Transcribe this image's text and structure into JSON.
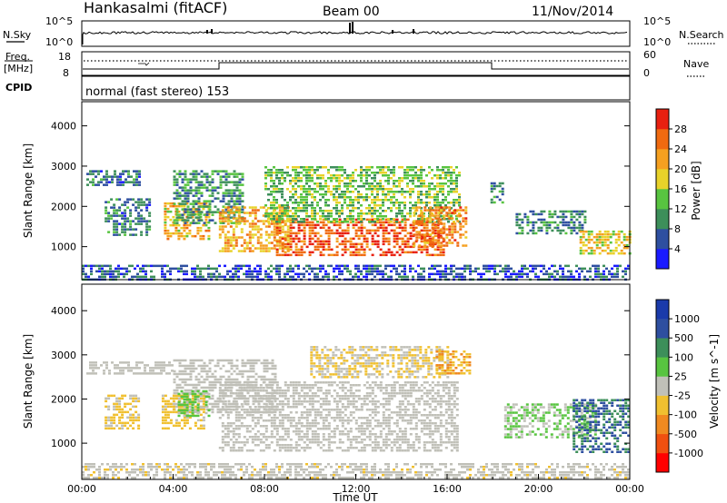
{
  "header": {
    "station": "Hankasalmi (fitACF)",
    "beam": "Beam 00",
    "date": "11/Nov/2014"
  },
  "top_panels": {
    "nsky_label": "N.Sky",
    "nsearch_label": "N.Search",
    "nsky_ticks": [
      "10^5",
      "10^0"
    ],
    "nsearch_ticks": [
      "10^5",
      "10^0"
    ],
    "freq_label_1": "Freq.",
    "freq_label_2": "[MHz]",
    "freq_ticks": [
      "18",
      "8"
    ],
    "nave_label": "Nave",
    "nave_ticks": [
      "60",
      "0"
    ],
    "cpid_label": "CPID",
    "cpid_text": "normal (fast stereo) 153"
  },
  "colors": {
    "power": [
      "#1a1aff",
      "#2e4fa0",
      "#3d8f5a",
      "#58c440",
      "#e8d22a",
      "#f5a020",
      "#f06a10",
      "#e82010"
    ],
    "velocity": [
      "#ff0000",
      "#f05010",
      "#f08a20",
      "#f0c030",
      "#c0c0b8",
      "#58c440",
      "#3d8f5a",
      "#2e4fa0",
      "#1a3aaa"
    ]
  },
  "chart_data": [
    {
      "type": "heatmap",
      "name": "Power",
      "ylabel": "Slant Range [km]",
      "yticks": [
        1000,
        2000,
        3000,
        4000
      ],
      "ylim": [
        180,
        4600
      ],
      "colorbar": {
        "label": "Power [dB]",
        "ticks": [
          "28",
          "24",
          "20",
          "16",
          "12",
          "8",
          "4"
        ],
        "range": [
          0,
          32
        ]
      },
      "regions": [
        {
          "t0": 0.2,
          "t1": 2.5,
          "r0": 2500,
          "r1": 2900,
          "v": 8
        },
        {
          "t0": 1.0,
          "t1": 3.0,
          "r0": 1300,
          "r1": 2200,
          "v": 8
        },
        {
          "t0": 3.6,
          "t1": 5.6,
          "r0": 1200,
          "r1": 2100,
          "v": 20
        },
        {
          "t0": 4.0,
          "t1": 7.0,
          "r0": 1600,
          "r1": 2900,
          "v": 10
        },
        {
          "t0": 6.0,
          "t1": 9.0,
          "r0": 900,
          "r1": 2000,
          "v": 21
        },
        {
          "t0": 8.5,
          "t1": 15.8,
          "r0": 800,
          "r1": 1700,
          "v": 27
        },
        {
          "t0": 8.0,
          "t1": 16.5,
          "r0": 1600,
          "r1": 3000,
          "v": 14
        },
        {
          "t0": 14.5,
          "t1": 16.8,
          "r0": 1000,
          "r1": 2000,
          "v": 24
        },
        {
          "t0": 17.9,
          "t1": 18.4,
          "r0": 2100,
          "r1": 2600,
          "v": 10
        },
        {
          "t0": 19.0,
          "t1": 22.0,
          "r0": 1300,
          "r1": 1900,
          "v": 9
        },
        {
          "t0": 21.8,
          "t1": 24.0,
          "r0": 800,
          "r1": 1400,
          "v": 19
        },
        {
          "t0": 0.0,
          "t1": 24.0,
          "r0": 200,
          "r1": 550,
          "v": 6
        }
      ]
    },
    {
      "type": "heatmap",
      "name": "Velocity",
      "xlabel": "Time UT",
      "ylabel": "Slant Range [km]",
      "xticks": [
        "00:00",
        "04:00",
        "08:00",
        "12:00",
        "16:00",
        "20:00",
        "00:00"
      ],
      "xlim": [
        0,
        24
      ],
      "yticks": [
        1000,
        2000,
        3000,
        4000
      ],
      "ylim": [
        180,
        4600
      ],
      "colorbar": {
        "label": "Velocity [m s^-1]",
        "ticks": [
          "1000",
          "500",
          "100",
          "25",
          "-25",
          "-100",
          "-500",
          "-1000"
        ],
        "range": [
          -1250,
          1250
        ]
      },
      "regions": [
        {
          "t0": 0.2,
          "t1": 4.0,
          "r0": 2550,
          "r1": 2850,
          "v": 0
        },
        {
          "t0": 4.0,
          "t1": 8.5,
          "r0": 1700,
          "r1": 2900,
          "v": 0
        },
        {
          "t0": 6.0,
          "t1": 16.5,
          "r0": 800,
          "r1": 2400,
          "v": 0
        },
        {
          "t0": 1.0,
          "t1": 2.5,
          "r0": 1300,
          "r1": 2100,
          "v": -200
        },
        {
          "t0": 3.5,
          "t1": 5.3,
          "r0": 1300,
          "r1": 2100,
          "v": -250
        },
        {
          "t0": 4.2,
          "t1": 5.6,
          "r0": 1600,
          "r1": 2200,
          "v": 250
        },
        {
          "t0": 10.0,
          "t1": 16.0,
          "r0": 2500,
          "r1": 3200,
          "v": -150
        },
        {
          "t0": 15.5,
          "t1": 17.0,
          "r0": 2600,
          "r1": 3100,
          "v": -400
        },
        {
          "t0": 18.5,
          "t1": 22.5,
          "r0": 1100,
          "r1": 1900,
          "v": 150
        },
        {
          "t0": 21.5,
          "t1": 24.0,
          "r0": 800,
          "r1": 2000,
          "v": 700
        },
        {
          "t0": 0.0,
          "t1": 24.0,
          "r0": 200,
          "r1": 550,
          "v": -30
        }
      ]
    }
  ]
}
